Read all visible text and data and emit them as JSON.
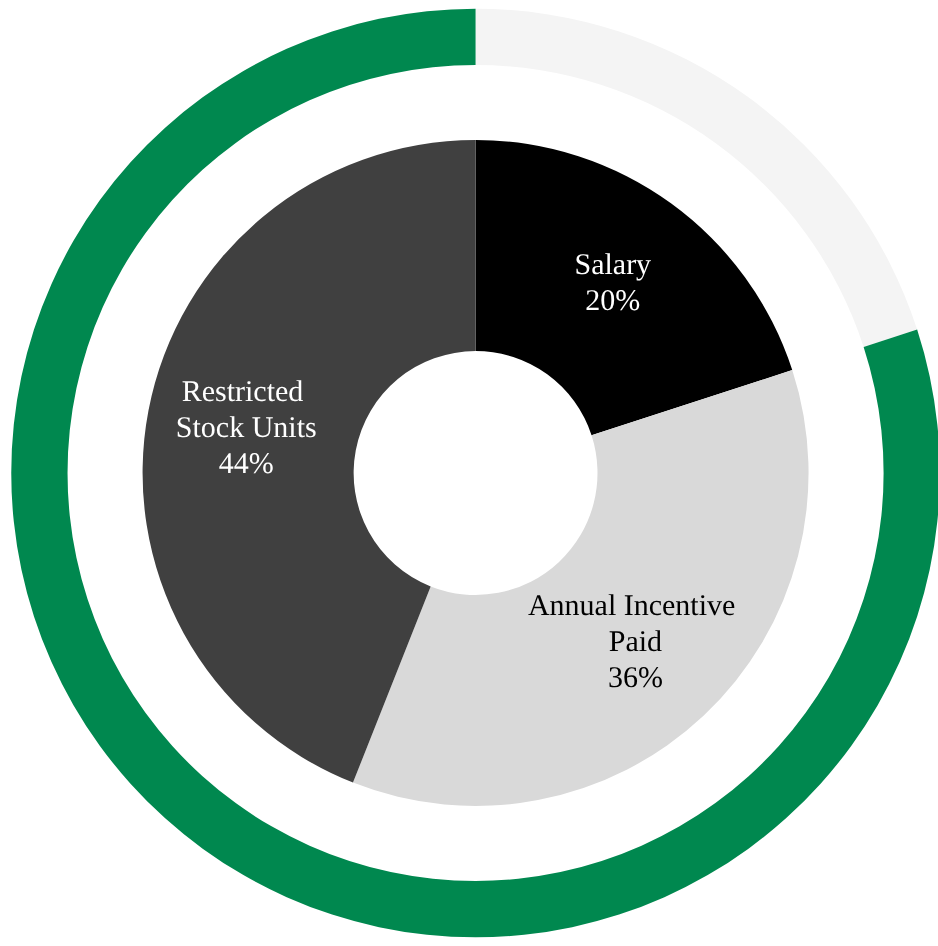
{
  "chart_data": [
    {
      "type": "donut",
      "legend": false,
      "categories": [
        "Salary",
        "Annual Incentive Paid",
        "Restricted Stock Units"
      ],
      "values": [
        20,
        36,
        44
      ],
      "colors": [
        "#000000",
        "#d9d9d9",
        "#404040"
      ],
      "value_labels": [
        "20%",
        "36%",
        "44%"
      ]
    },
    {
      "type": "donut",
      "legend": false,
      "categories": [
        null,
        null
      ],
      "values": [
        20,
        80
      ],
      "colors": [
        "#f4f4f4",
        "#00884f"
      ]
    }
  ]
}
